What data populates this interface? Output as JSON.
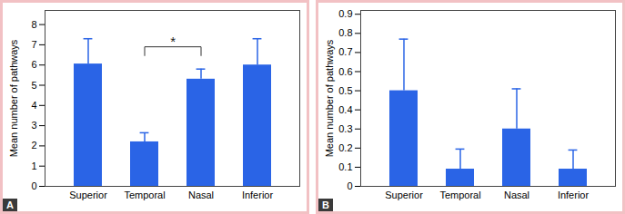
{
  "chart_data": [
    {
      "type": "bar",
      "panel_label": "A",
      "categories": [
        "Superior",
        "Temporal",
        "Nasal",
        "Inferior"
      ],
      "values": [
        6.05,
        2.2,
        5.3,
        6.0
      ],
      "errors": [
        1.25,
        0.45,
        0.5,
        1.3
      ],
      "color": "#2a64e6",
      "ylabel": "Mean number of pathways",
      "ylim": [
        0,
        8.7
      ],
      "yticks": [
        0,
        1,
        2,
        3,
        4,
        5,
        6,
        7,
        8
      ],
      "grid": false,
      "annotations": [
        {
          "text": "*",
          "from": "Temporal",
          "to": "Nasal",
          "y": 6.9
        }
      ]
    },
    {
      "type": "bar",
      "panel_label": "B",
      "categories": [
        "Superior",
        "Temporal",
        "Nasal",
        "Inferior"
      ],
      "values": [
        0.5,
        0.09,
        0.3,
        0.09
      ],
      "errors": [
        0.27,
        0.105,
        0.21,
        0.1
      ],
      "color": "#2a64e6",
      "ylabel": "Mean number of pathways",
      "ylim": [
        0,
        0.92
      ],
      "yticks": [
        0,
        0.1,
        0.2,
        0.3,
        0.4,
        0.5,
        0.6,
        0.7,
        0.8,
        0.9
      ],
      "grid": false
    }
  ]
}
